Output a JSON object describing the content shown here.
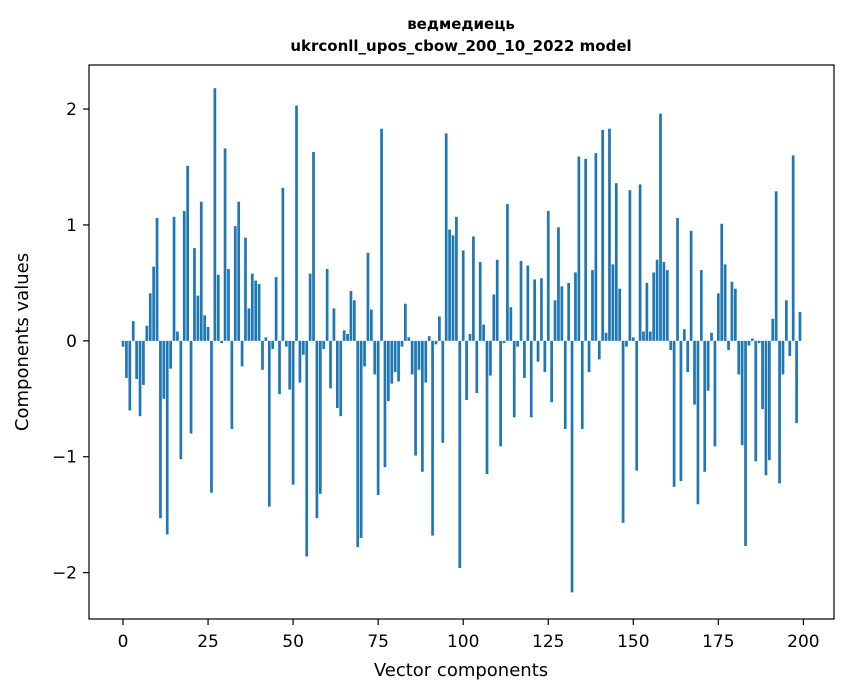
{
  "chart_data": {
    "type": "bar",
    "title_line1": "ведмедиець",
    "title_line2": "ukrconll_upos_cbow_200_10_2022 model",
    "xlabel": "Vector components",
    "ylabel": "Components values",
    "xlim": [
      -10,
      209
    ],
    "ylim": [
      -2.4,
      2.38
    ],
    "x_ticks": [
      0,
      25,
      50,
      75,
      100,
      125,
      150,
      175,
      200
    ],
    "y_ticks": [
      -2,
      -1,
      0,
      1,
      2
    ],
    "y_tick_labels": [
      "−2",
      "−1",
      "0",
      "1",
      "2"
    ],
    "bar_color": "#1f77b4",
    "values": [
      -0.05,
      -0.32,
      -0.6,
      0.17,
      -0.33,
      -0.65,
      -0.38,
      0.13,
      0.41,
      0.64,
      1.06,
      -1.53,
      -0.5,
      -1.67,
      -0.24,
      1.07,
      0.08,
      -1.02,
      1.12,
      1.51,
      -0.8,
      0.8,
      0.39,
      1.2,
      0.22,
      0.12,
      -1.31,
      2.18,
      0.57,
      -0.02,
      1.66,
      0.62,
      -0.76,
      0.99,
      1.2,
      -0.22,
      0.89,
      0.28,
      0.58,
      0.52,
      0.49,
      -0.25,
      0.03,
      -1.43,
      -0.07,
      0.55,
      -0.46,
      1.32,
      -0.05,
      -0.42,
      -1.24,
      2.03,
      -0.36,
      -0.12,
      -1.86,
      0.58,
      1.63,
      -1.53,
      -1.32,
      -0.07,
      0.62,
      -0.41,
      0.28,
      -0.58,
      -0.65,
      0.09,
      0.06,
      0.43,
      0.35,
      -1.78,
      -1.7,
      -0.22,
      0.76,
      0.27,
      -0.29,
      -1.33,
      1.83,
      -1.09,
      -0.52,
      -0.37,
      -0.27,
      -0.35,
      -0.05,
      0.32,
      0.03,
      -0.29,
      -0.99,
      -0.25,
      -1.13,
      -0.36,
      0.04,
      -1.68,
      -0.03,
      0.21,
      -0.88,
      1.79,
      0.96,
      0.91,
      1.07,
      -1.96,
      0.78,
      -0.51,
      0.06,
      0.9,
      -0.45,
      0.68,
      0.14,
      -1.15,
      -0.3,
      0.4,
      0.7,
      -0.91,
      -0.02,
      1.18,
      0.29,
      -0.66,
      -0.05,
      0.69,
      -0.32,
      0.65,
      -0.66,
      0.53,
      -0.18,
      0.54,
      -0.27,
      1.12,
      -0.53,
      0.35,
      0.98,
      0.47,
      -0.76,
      0.5,
      -2.17,
      0.59,
      1.59,
      -0.76,
      1.57,
      -0.27,
      0.61,
      1.62,
      -0.16,
      1.82,
      0.07,
      1.83,
      0.66,
      1.36,
      0.45,
      -1.57,
      -0.05,
      1.3,
      0.03,
      -1.12,
      1.35,
      0.08,
      0.5,
      0.08,
      0.59,
      0.7,
      1.96,
      0.68,
      0.61,
      -0.08,
      -1.26,
      1.06,
      -1.21,
      0.1,
      -0.27,
      0.95,
      -0.55,
      -1.41,
      0.61,
      -1.13,
      -0.43,
      0.07,
      -0.91,
      0.41,
      1.01,
      0.66,
      -0.08,
      0.51,
      0.45,
      -0.29,
      -0.9,
      -1.77,
      -0.04,
      0.02,
      -1.04,
      -0.02,
      -0.59,
      -1.16,
      -1.03,
      0.19,
      1.29,
      -1.23,
      -0.29,
      0.35,
      -0.13,
      1.6,
      -0.71,
      0.25
    ]
  }
}
